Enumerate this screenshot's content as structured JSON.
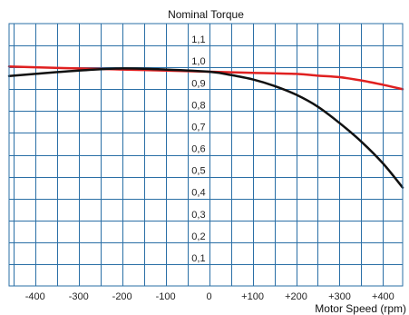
{
  "chart_data": {
    "type": "line",
    "title": "Nominal Torque",
    "xlabel": "Motor Speed (rpm)",
    "ylabel": "",
    "xlim": [
      -460,
      445
    ],
    "ylim": [
      0,
      1.2
    ],
    "grid": true,
    "x_ticks": [
      -400,
      -300,
      -200,
      -100,
      0,
      100,
      200,
      300,
      400
    ],
    "x_tick_labels": [
      "-400",
      "-300",
      "-200",
      "-100",
      "0",
      "+100",
      "+200",
      "+300",
      "+400"
    ],
    "y_ticks": [
      0.1,
      0.2,
      0.3,
      0.4,
      0.5,
      0.6,
      0.7,
      0.8,
      0.9,
      1.0,
      1.1
    ],
    "y_tick_labels": [
      "0,1",
      "0,2",
      "0,3",
      "0,4",
      "0,5",
      "0,6",
      "0,7",
      "0,8",
      "0,9",
      "1,0",
      "1,1"
    ],
    "series": [
      {
        "color": "#e02020",
        "x": [
          -460,
          -400,
          -300,
          -200,
          -100,
          0,
          100,
          200,
          250,
          300,
          350,
          400,
          445
        ],
        "values": [
          1.004,
          1.0,
          0.995,
          0.99,
          0.985,
          0.98,
          0.975,
          0.97,
          0.962,
          0.955,
          0.94,
          0.92,
          0.9
        ]
      },
      {
        "color": "#111111",
        "x": [
          -460,
          -400,
          -300,
          -200,
          -100,
          0,
          50,
          100,
          150,
          200,
          250,
          300,
          350,
          400,
          445
        ],
        "values": [
          0.96,
          0.97,
          0.985,
          0.995,
          0.99,
          0.98,
          0.965,
          0.945,
          0.915,
          0.875,
          0.82,
          0.745,
          0.66,
          0.56,
          0.45
        ]
      }
    ]
  }
}
